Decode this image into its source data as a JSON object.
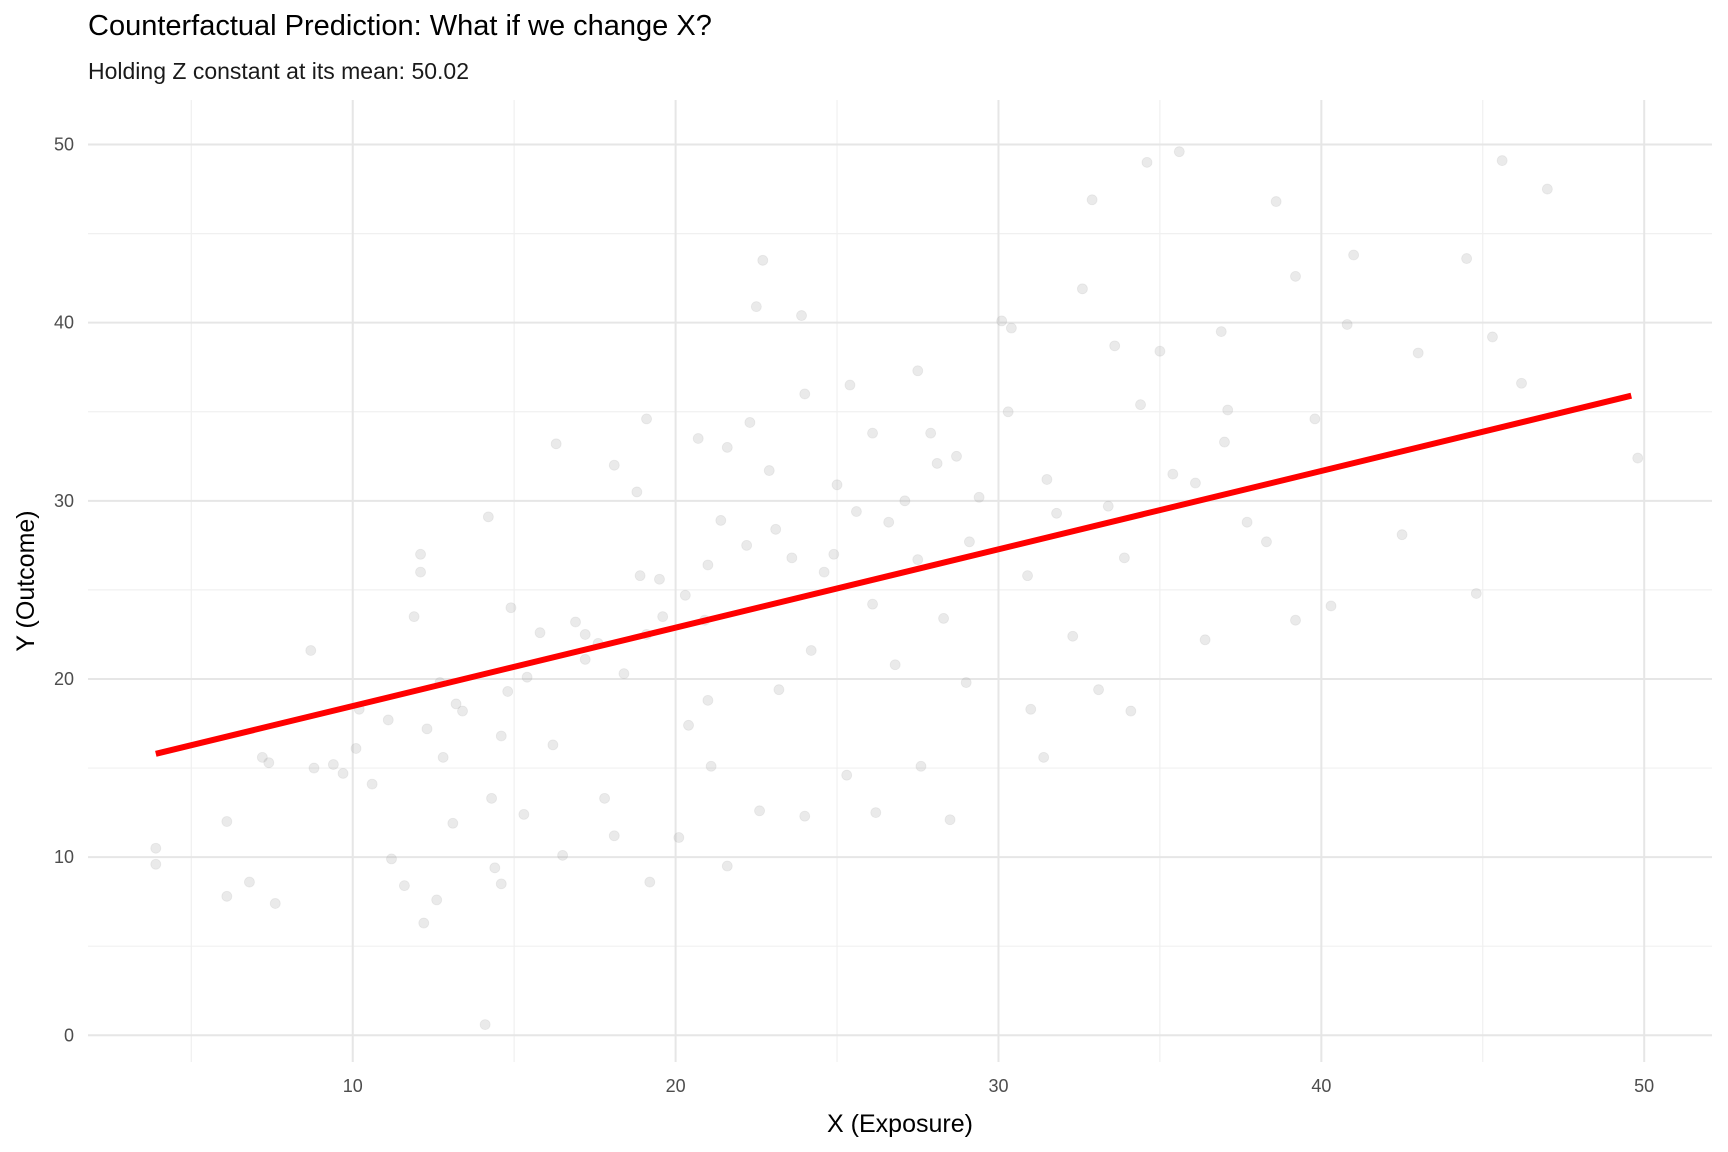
{
  "chart_data": {
    "type": "scatter",
    "title": "Counterfactual Prediction: What if we change X?",
    "subtitle": "Holding Z constant at its mean: 50.02",
    "xlabel": "X (Exposure)",
    "ylabel": "Y (Outcome)",
    "xlim": [
      1.8,
      52.1
    ],
    "ylim": [
      -1.5,
      52.5
    ],
    "x_ticks": [
      10,
      20,
      30,
      40,
      50
    ],
    "y_ticks": [
      0,
      10,
      20,
      30,
      40,
      50
    ],
    "x_tick_labels": [
      "10",
      "20",
      "30",
      "40",
      "50"
    ],
    "y_tick_labels": [
      "0",
      "10",
      "20",
      "30",
      "40",
      "50"
    ],
    "grid": true,
    "legend": "none",
    "series": [
      {
        "type": "scatter",
        "color": "#a0a0a0",
        "opacity": 0.22,
        "x": [
          3.9,
          3.9,
          6.1,
          6.1,
          6.8,
          7.2,
          7.4,
          7.6,
          8.7,
          8.8,
          9.7,
          10.2,
          10.6,
          11.2,
          11.6,
          12.1,
          12.2,
          12.8,
          13.1,
          13.2,
          14.2,
          14.4,
          14.6,
          14.9,
          12.6,
          12.1,
          11.9,
          12.3,
          14.1,
          14.6,
          16.5,
          17.2,
          14.3,
          15.3,
          16.2,
          17.8,
          18.1,
          19.2,
          20.1,
          21.1,
          22.6,
          21.6,
          24.0,
          25.3,
          26.2,
          27.6,
          28.5,
          29.0,
          31.0,
          31.4,
          33.1,
          34.1,
          36.4,
          38.3,
          39.2,
          40.3,
          42.5,
          44.8,
          45.3,
          46.2,
          47.0,
          49.8,
          22.7,
          22.5,
          23.9,
          25.4,
          27.5,
          24.0,
          21.6,
          19.1,
          18.1,
          16.3,
          18.8,
          20.7,
          22.3,
          26.1,
          30.1,
          30.4,
          32.6,
          33.6,
          35.0,
          36.9,
          38.6,
          40.8,
          43.0,
          39.2,
          37.1,
          34.6,
          32.9,
          35.6,
          41.0,
          44.5,
          45.6,
          34.4,
          30.3,
          28.7,
          27.1,
          25.6,
          24.9,
          23.1,
          22.2,
          21.0,
          20.3,
          19.6,
          19.1,
          17.6,
          15.4,
          14.8,
          13.4,
          11.1,
          10.1,
          9.4,
          12.7,
          15.8,
          17.2,
          18.9,
          21.4,
          22.9,
          24.6,
          26.6,
          28.1,
          29.4,
          31.8,
          33.9,
          36.1,
          37.7,
          39.8,
          21.0,
          23.2,
          20.4,
          18.4,
          16.9,
          26.8,
          28.3,
          30.9,
          32.3,
          27.9,
          25.0,
          23.6,
          20.9,
          19.5,
          24.2,
          26.1,
          27.5,
          29.1,
          31.5,
          33.4,
          35.4,
          37.0
        ],
        "y": [
          9.6,
          10.5,
          12.0,
          7.8,
          8.6,
          15.6,
          15.3,
          7.4,
          21.6,
          15.0,
          14.7,
          18.3,
          14.1,
          9.9,
          8.4,
          27.0,
          6.3,
          15.6,
          11.9,
          18.6,
          29.1,
          9.4,
          8.5,
          24.0,
          7.6,
          26.0,
          23.5,
          17.2,
          0.6,
          16.8,
          10.1,
          22.5,
          13.3,
          12.4,
          16.3,
          13.3,
          11.2,
          8.6,
          11.1,
          15.1,
          12.6,
          9.5,
          12.3,
          14.6,
          12.5,
          15.1,
          12.1,
          19.8,
          18.3,
          15.6,
          19.4,
          18.2,
          22.2,
          27.7,
          23.3,
          24.1,
          28.1,
          24.8,
          39.2,
          36.6,
          47.5,
          32.4,
          43.5,
          40.9,
          40.4,
          36.5,
          37.3,
          36.0,
          33.0,
          34.6,
          32.0,
          33.2,
          30.5,
          33.5,
          34.4,
          33.8,
          40.1,
          39.7,
          41.9,
          38.7,
          38.4,
          39.5,
          46.8,
          39.9,
          38.3,
          42.6,
          35.1,
          49.0,
          46.9,
          49.6,
          43.8,
          43.6,
          49.1,
          35.4,
          35.0,
          32.5,
          30.0,
          29.4,
          27.0,
          28.4,
          27.5,
          26.4,
          24.7,
          23.5,
          22.5,
          22.0,
          20.1,
          19.3,
          18.2,
          17.7,
          16.1,
          15.2,
          19.8,
          22.6,
          21.1,
          25.8,
          28.9,
          31.7,
          26.0,
          28.8,
          32.1,
          30.2,
          29.3,
          26.8,
          31.0,
          28.8,
          34.6,
          18.8,
          19.4,
          17.4,
          20.3,
          23.2,
          20.8,
          23.4,
          25.8,
          22.4,
          33.8,
          30.9,
          26.8,
          23.3,
          25.6,
          21.6,
          24.2,
          26.7,
          27.7,
          31.2,
          29.7,
          31.5,
          33.3
        ]
      },
      {
        "type": "line",
        "name": "",
        "color": "#ff0000",
        "x": [
          3.9,
          49.6
        ],
        "y": [
          15.8,
          35.9
        ]
      }
    ]
  }
}
